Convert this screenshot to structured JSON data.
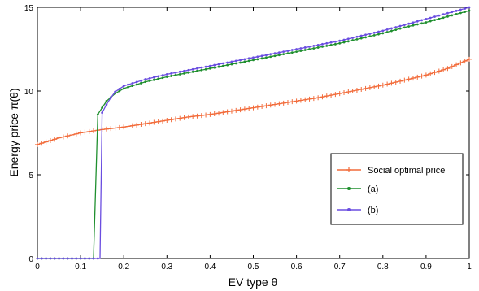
{
  "chart_data": {
    "type": "line",
    "title": "",
    "xlabel": "EV type θ",
    "ylabel": "Energy price  π(θ)",
    "xlim": [
      0,
      1
    ],
    "ylim": [
      0,
      15
    ],
    "xticks": [
      "0",
      "0.1",
      "0.2",
      "0.3",
      "0.4",
      "0.5",
      "0.6",
      "0.7",
      "0.8",
      "0.9",
      "1"
    ],
    "yticks": [
      "0",
      "5",
      "10",
      "15"
    ],
    "grid": false,
    "legend_position": "lower-right",
    "series": [
      {
        "name": "Social optimal price",
        "color": "#f26b3a",
        "marker": "plus",
        "x": [
          0,
          0.05,
          0.1,
          0.15,
          0.2,
          0.25,
          0.3,
          0.35,
          0.4,
          0.45,
          0.5,
          0.55,
          0.6,
          0.65,
          0.7,
          0.75,
          0.8,
          0.85,
          0.9,
          0.95,
          1.0
        ],
        "y": [
          6.8,
          7.2,
          7.5,
          7.7,
          7.85,
          8.05,
          8.25,
          8.45,
          8.6,
          8.8,
          9.0,
          9.2,
          9.4,
          9.6,
          9.85,
          10.1,
          10.35,
          10.65,
          10.95,
          11.35,
          11.9
        ]
      },
      {
        "name": "(a)",
        "color": "#1f8f2e",
        "marker": "dot",
        "x": [
          0,
          0.05,
          0.1,
          0.13,
          0.14,
          0.15,
          0.16,
          0.18,
          0.2,
          0.25,
          0.3,
          0.35,
          0.4,
          0.45,
          0.5,
          0.55,
          0.6,
          0.65,
          0.7,
          0.75,
          0.8,
          0.85,
          0.9,
          0.95,
          1.0
        ],
        "y": [
          0,
          0,
          0,
          0,
          8.6,
          9.0,
          9.4,
          9.85,
          10.15,
          10.55,
          10.85,
          11.1,
          11.35,
          11.6,
          11.85,
          12.1,
          12.35,
          12.6,
          12.85,
          13.15,
          13.45,
          13.8,
          14.1,
          14.45,
          14.8
        ]
      },
      {
        "name": "(b)",
        "color": "#6a4de0",
        "marker": "dot",
        "x": [
          0,
          0.05,
          0.1,
          0.145,
          0.15,
          0.16,
          0.17,
          0.18,
          0.2,
          0.25,
          0.3,
          0.35,
          0.4,
          0.45,
          0.5,
          0.55,
          0.6,
          0.65,
          0.7,
          0.75,
          0.8,
          0.85,
          0.9,
          0.95,
          1.0
        ],
        "y": [
          0,
          0,
          0,
          0,
          8.7,
          9.2,
          9.6,
          9.95,
          10.3,
          10.7,
          11.0,
          11.25,
          11.5,
          11.75,
          12.0,
          12.25,
          12.5,
          12.75,
          13.0,
          13.3,
          13.6,
          13.95,
          14.3,
          14.65,
          15.0
        ]
      }
    ]
  }
}
